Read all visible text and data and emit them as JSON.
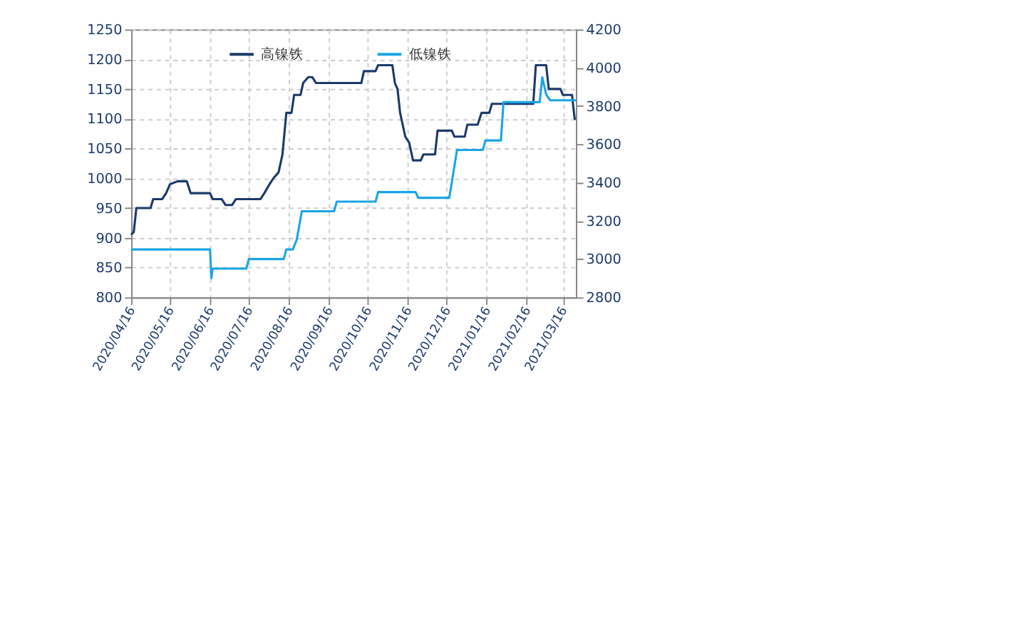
{
  "chart_data": {
    "type": "line",
    "xlim": [
      "2020-04-16",
      "2021-03-26"
    ],
    "xticks": [
      {
        "value": "2020-04-16",
        "label": "2020/04/16"
      },
      {
        "value": "2020-05-16",
        "label": "2020/05/16"
      },
      {
        "value": "2020-06-16",
        "label": "2020/06/16"
      },
      {
        "value": "2020-07-16",
        "label": "2020/07/16"
      },
      {
        "value": "2020-08-16",
        "label": "2020/08/16"
      },
      {
        "value": "2020-09-16",
        "label": "2020/09/16"
      },
      {
        "value": "2020-10-16",
        "label": "2020/10/16"
      },
      {
        "value": "2020-11-16",
        "label": "2020/11/16"
      },
      {
        "value": "2020-12-16",
        "label": "2020/12/16"
      },
      {
        "value": "2021-01-16",
        "label": "2021/01/16"
      },
      {
        "value": "2021-02-16",
        "label": "2021/02/16"
      },
      {
        "value": "2021-03-16",
        "label": "2021/03/16"
      }
    ],
    "ylim": [
      800,
      1250
    ],
    "yticks": [
      800,
      850,
      900,
      950,
      1000,
      1050,
      1100,
      1150,
      1200,
      1250
    ],
    "y2lim": [
      2800,
      4200
    ],
    "y2ticks": [
      2800,
      3000,
      3200,
      3400,
      3600,
      3800,
      4000,
      4200
    ],
    "grid": true,
    "legend": "top",
    "line_style": "solid",
    "series": [
      {
        "name": "高镍铁",
        "color": "#1b3a6b",
        "x": [
          "2020-04-16",
          "2020-04-18",
          "2020-04-20",
          "2020-05-01",
          "2020-05-03",
          "2020-05-10",
          "2020-05-13",
          "2020-05-16",
          "2020-05-22",
          "2020-05-29",
          "2020-06-01",
          "2020-06-16",
          "2020-06-18",
          "2020-06-25",
          "2020-06-28",
          "2020-07-03",
          "2020-07-06",
          "2020-07-25",
          "2020-07-28",
          "2020-08-01",
          "2020-08-04",
          "2020-08-08",
          "2020-08-11",
          "2020-08-14",
          "2020-08-18",
          "2020-08-20",
          "2020-08-25",
          "2020-08-27",
          "2020-08-31",
          "2020-09-03",
          "2020-09-06",
          "2020-10-11",
          "2020-10-13",
          "2020-10-22",
          "2020-10-24",
          "2020-11-04",
          "2020-11-06",
          "2020-11-08",
          "2020-11-10",
          "2020-11-12",
          "2020-11-14",
          "2020-11-17",
          "2020-11-20",
          "2020-11-26",
          "2020-11-28",
          "2020-12-07",
          "2020-12-09",
          "2020-12-20",
          "2020-12-22",
          "2020-12-30",
          "2021-01-01",
          "2021-01-09",
          "2021-01-12",
          "2021-01-18",
          "2021-01-20",
          "2021-02-21",
          "2021-02-23",
          "2021-03-03",
          "2021-03-05",
          "2021-03-14",
          "2021-03-16",
          "2021-03-23",
          "2021-03-25",
          "2021-03-26"
        ],
        "values": [
          905,
          910,
          950,
          950,
          965,
          965,
          975,
          990,
          995,
          995,
          975,
          975,
          965,
          965,
          955,
          955,
          965,
          965,
          975,
          990,
          1000,
          1010,
          1040,
          1110,
          1110,
          1140,
          1140,
          1160,
          1170,
          1170,
          1160,
          1160,
          1180,
          1180,
          1190,
          1190,
          1160,
          1150,
          1110,
          1090,
          1070,
          1060,
          1030,
          1030,
          1040,
          1040,
          1080,
          1080,
          1070,
          1070,
          1090,
          1090,
          1110,
          1110,
          1125,
          1125,
          1190,
          1190,
          1150,
          1150,
          1140,
          1140,
          1100,
          1100
        ]
      },
      {
        "name": "低镍铁",
        "color": "#1aa5e6",
        "axis": "y2",
        "x": [
          "2020-04-16",
          "2020-06-16",
          "2020-06-17",
          "2020-06-18",
          "2020-07-14",
          "2020-07-16",
          "2020-08-12",
          "2020-08-14",
          "2020-08-19",
          "2020-08-22",
          "2020-08-26",
          "2020-09-20",
          "2020-09-22",
          "2020-10-22",
          "2020-10-24",
          "2020-11-22",
          "2020-11-24",
          "2020-12-18",
          "2020-12-20",
          "2020-12-24",
          "2021-01-13",
          "2021-01-15",
          "2021-01-27",
          "2021-01-29",
          "2021-02-26",
          "2021-02-28",
          "2021-03-03",
          "2021-03-06",
          "2021-03-26"
        ],
        "values": [
          3050,
          3050,
          2900,
          2950,
          2950,
          3000,
          3000,
          3050,
          3050,
          3100,
          3250,
          3250,
          3300,
          3300,
          3350,
          3350,
          3320,
          3320,
          3400,
          3570,
          3570,
          3620,
          3620,
          3820,
          3820,
          3950,
          3860,
          3830,
          3830
        ]
      }
    ]
  }
}
